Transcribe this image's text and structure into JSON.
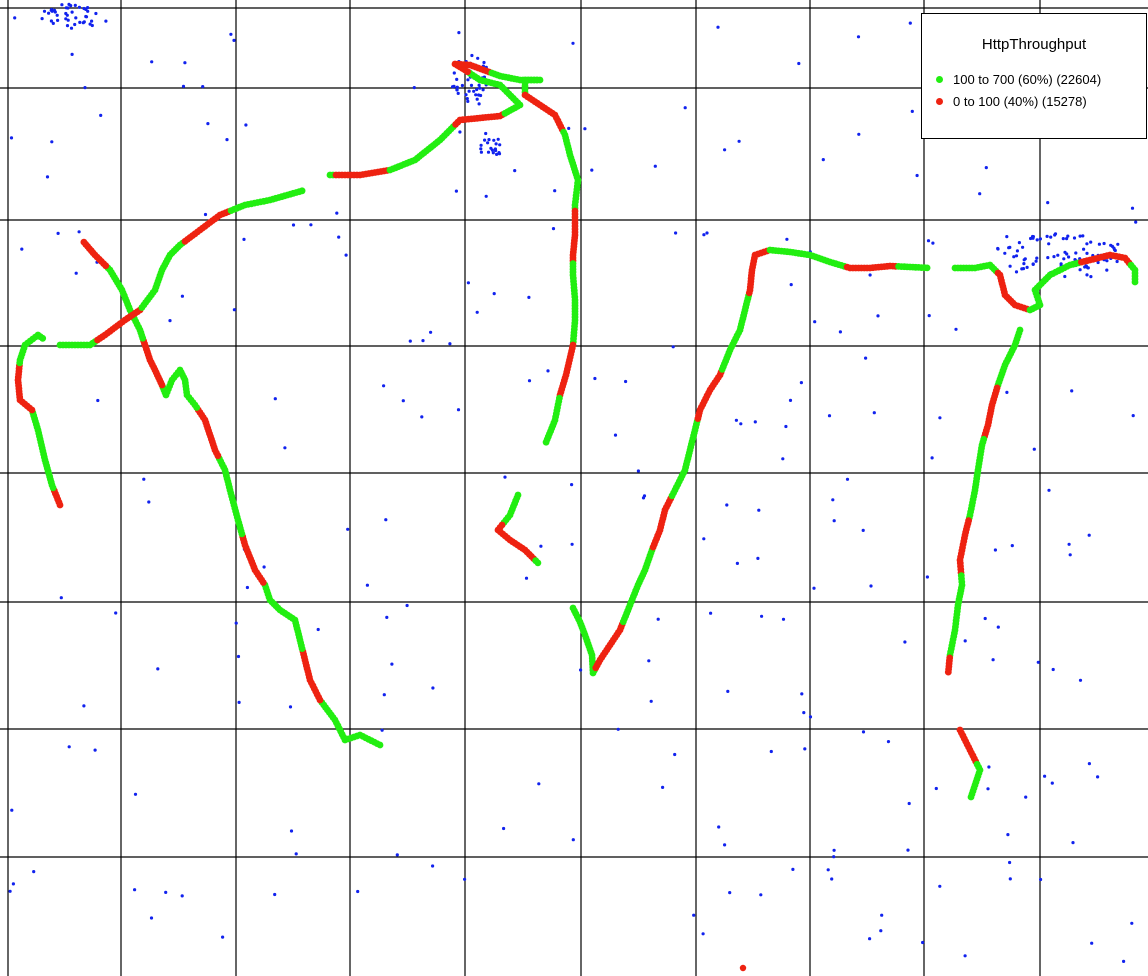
{
  "legend": {
    "title": "HttpThroughput",
    "entries": [
      {
        "label": "100 to 700 (60%)  (22604)",
        "color": "#22ee11"
      },
      {
        "label": "0 to 100 (40%)  (15278)",
        "color": "#ee2211"
      }
    ]
  },
  "colors": {
    "grid": "#000000",
    "points": "#1122ee",
    "high": "#22ee11",
    "low": "#ee2211"
  }
}
